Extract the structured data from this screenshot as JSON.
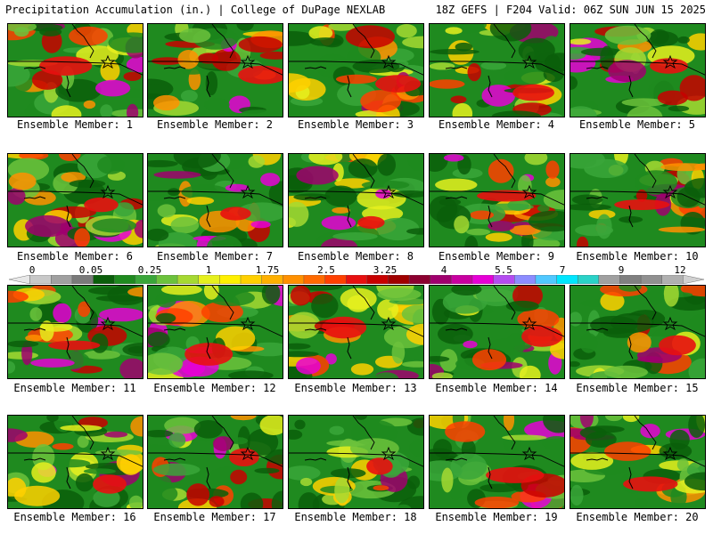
{
  "header": {
    "left_title": "Precipitation Accumulation (in.) | College of DuPage NEXLAB",
    "right_title": "18Z GEFS | F204 Valid: 06Z SUN JUN 15 2025"
  },
  "colorbar": {
    "labels": [
      "0",
      "0.05",
      "0.25",
      "1",
      "1.75",
      "2.5",
      "3.25",
      "4",
      "5.5",
      "7",
      "9",
      "12"
    ],
    "colors": [
      "#e8e8e8",
      "#c8c8c8",
      "#a0a0a0",
      "#7a7a7a",
      "#0b5e0b",
      "#1f8a1f",
      "#3aa63a",
      "#6cc23c",
      "#a6d932",
      "#e6f01e",
      "#fff000",
      "#ffd000",
      "#ffb000",
      "#ff9000",
      "#ff6a00",
      "#ff4000",
      "#e81010",
      "#c80000",
      "#a00000",
      "#8c0030",
      "#a0006e",
      "#c800a0",
      "#e600d6",
      "#b44cf0",
      "#8c8cff",
      "#50c8ff",
      "#00e6ff",
      "#2ad2c8",
      "#a0a0a0",
      "#808080",
      "#909090",
      "#b0b0b0",
      "#d0d0d0"
    ]
  },
  "members": [
    {
      "label": "Ensemble Member: 1"
    },
    {
      "label": "Ensemble Member: 2"
    },
    {
      "label": "Ensemble Member: 3"
    },
    {
      "label": "Ensemble Member: 4"
    },
    {
      "label": "Ensemble Member: 5"
    },
    {
      "label": "Ensemble Member: 6"
    },
    {
      "label": "Ensemble Member: 7"
    },
    {
      "label": "Ensemble Member: 8"
    },
    {
      "label": "Ensemble Member: 9"
    },
    {
      "label": "Ensemble Member: 10"
    },
    {
      "label": "Ensemble Member: 11"
    },
    {
      "label": "Ensemble Member: 12"
    },
    {
      "label": "Ensemble Member: 13"
    },
    {
      "label": "Ensemble Member: 14"
    },
    {
      "label": "Ensemble Member: 15"
    },
    {
      "label": "Ensemble Member: 16"
    },
    {
      "label": "Ensemble Member: 17"
    },
    {
      "label": "Ensemble Member: 18"
    },
    {
      "label": "Ensemble Member: 19"
    },
    {
      "label": "Ensemble Member: 20"
    }
  ]
}
